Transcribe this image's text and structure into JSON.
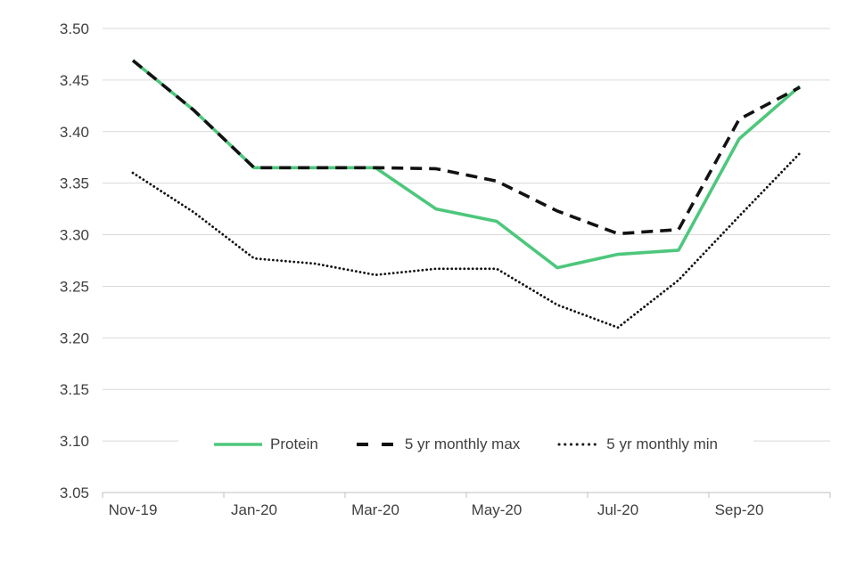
{
  "chart_data": {
    "type": "line",
    "title": "",
    "xlabel": "",
    "ylabel": "",
    "categories": [
      "Nov-19",
      "Dec-19",
      "Jan-20",
      "Feb-20",
      "Mar-20",
      "Apr-20",
      "May-20",
      "Jun-20",
      "Jul-20",
      "Aug-20",
      "Sep-20",
      "Oct-20"
    ],
    "x_tick_labels": [
      "Nov-19",
      "Jan-20",
      "Mar-20",
      "May-20",
      "Jul-20",
      "Sep-20"
    ],
    "x_tick_every": 2,
    "series": [
      {
        "name": "Protein",
        "style": "solid",
        "color": "#4dc77c",
        "values": [
          3.469,
          3.421,
          3.365,
          3.365,
          3.365,
          3.325,
          3.313,
          3.268,
          3.281,
          3.285,
          3.393,
          3.444
        ]
      },
      {
        "name": "5 yr monthly max",
        "style": "dashed",
        "color": "#121212",
        "values": [
          3.469,
          3.421,
          3.365,
          3.365,
          3.365,
          3.364,
          3.352,
          3.323,
          3.301,
          3.305,
          3.412,
          3.443
        ]
      },
      {
        "name": "5 yr monthly min",
        "style": "dotted",
        "color": "#121212",
        "values": [
          3.36,
          3.322,
          3.277,
          3.272,
          3.261,
          3.267,
          3.267,
          3.232,
          3.21,
          3.256,
          3.318,
          3.379
        ]
      }
    ],
    "ylim": [
      3.05,
      3.5
    ],
    "ytick_step": 0.05,
    "ytick_labels": [
      "3.05",
      "3.10",
      "3.15",
      "3.20",
      "3.25",
      "3.30",
      "3.35",
      "3.40",
      "3.45",
      "3.50"
    ],
    "grid": "horizontal",
    "legend_position": "bottom-inside"
  },
  "colors": {
    "gridline": "#d9d9d9",
    "axis": "#bfbfbf",
    "tick_text": "#404040",
    "background": "#ffffff",
    "accent_green": "#4dc77c"
  }
}
